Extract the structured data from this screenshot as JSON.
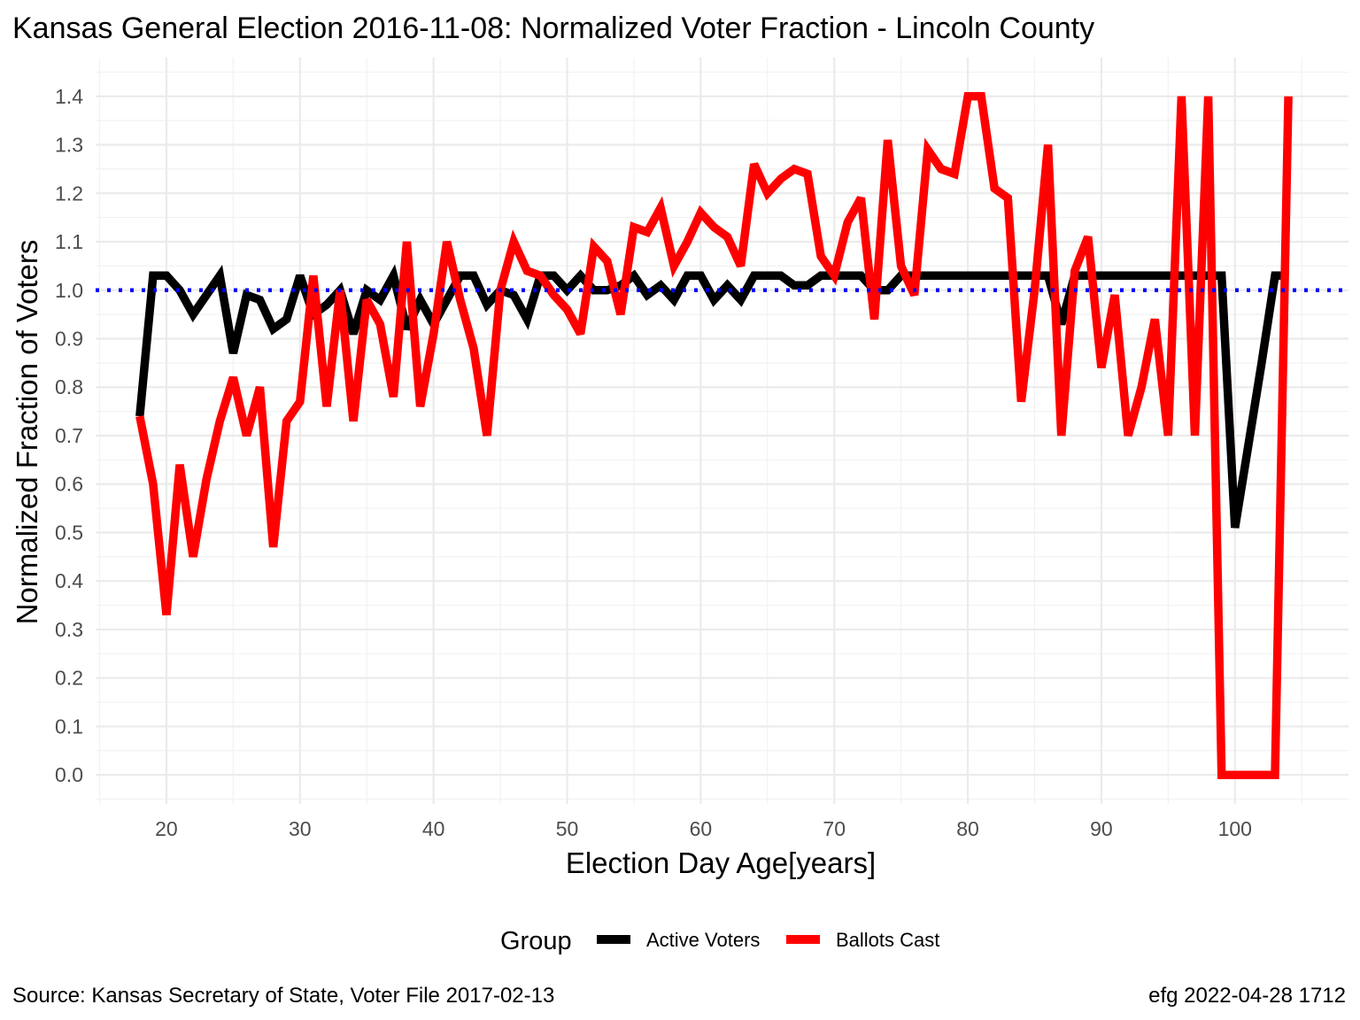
{
  "chart_data": {
    "type": "line",
    "title": "Kansas General Election 2016-11-08:  Normalized Voter Fraction - Lincoln County",
    "xlabel": "Election Day Age[years]",
    "ylabel": "Normalized Fraction of Voters",
    "xlim": [
      14.7,
      108.5
    ],
    "ylim": [
      -0.06,
      1.48
    ],
    "x_ticks": [
      20,
      30,
      40,
      50,
      60,
      70,
      80,
      90,
      100
    ],
    "y_ticks": [
      0.0,
      0.1,
      0.2,
      0.3,
      0.4,
      0.5,
      0.6,
      0.7,
      0.8,
      0.9,
      1.0,
      1.1,
      1.2,
      1.3,
      1.4
    ],
    "y_tick_labels": [
      "0.0",
      "0.1",
      "0.2",
      "0.3",
      "0.4",
      "0.5",
      "0.6",
      "0.7",
      "0.8",
      "0.9",
      "1.0",
      "1.1",
      "1.2",
      "1.3",
      "1.4"
    ],
    "grid": true,
    "reference_line": {
      "y": 1.0,
      "color": "#0000ff",
      "style": "dotted"
    },
    "legend": {
      "title": "Group",
      "position": "bottom"
    },
    "series": [
      {
        "name": "Active Voters",
        "color": "#000000",
        "x": [
          18,
          19,
          20,
          21,
          22,
          23,
          24,
          25,
          26,
          27,
          28,
          29,
          30,
          31,
          32,
          33,
          34,
          35,
          36,
          37,
          38,
          39,
          40,
          41,
          42,
          43,
          44,
          45,
          46,
          47,
          48,
          49,
          50,
          51,
          52,
          53,
          54,
          55,
          56,
          57,
          58,
          59,
          60,
          61,
          62,
          63,
          64,
          65,
          66,
          67,
          68,
          69,
          70,
          71,
          72,
          73,
          74,
          75,
          76,
          77,
          78,
          79,
          80,
          81,
          82,
          83,
          84,
          85,
          86,
          87,
          88,
          89,
          90,
          91,
          92,
          93,
          94,
          95,
          96,
          97,
          98,
          99,
          100,
          101,
          102,
          103,
          104
        ],
        "values": [
          0.74,
          1.03,
          1.03,
          1.0,
          0.95,
          0.99,
          1.03,
          0.87,
          0.99,
          0.98,
          0.92,
          0.94,
          1.03,
          0.95,
          0.97,
          1.0,
          0.91,
          1.0,
          0.98,
          1.03,
          0.92,
          0.98,
          0.93,
          0.98,
          1.03,
          1.03,
          0.97,
          1.0,
          0.99,
          0.94,
          1.03,
          1.03,
          1.0,
          1.03,
          1.0,
          1.0,
          1.01,
          1.03,
          0.99,
          1.01,
          0.98,
          1.03,
          1.03,
          0.98,
          1.01,
          0.98,
          1.03,
          1.03,
          1.03,
          1.01,
          1.01,
          1.03,
          1.03,
          1.03,
          1.03,
          1.0,
          1.0,
          1.03,
          1.03,
          1.03,
          1.03,
          1.03,
          1.03,
          1.03,
          1.03,
          1.03,
          1.03,
          1.03,
          1.03,
          0.93,
          1.03,
          1.03,
          1.03,
          1.03,
          1.03,
          1.03,
          1.03,
          1.03,
          1.03,
          1.03,
          1.03,
          1.03,
          0.51,
          0.68,
          0.85,
          1.03,
          1.03
        ]
      },
      {
        "name": "Ballots Cast",
        "color": "#ff0000",
        "x": [
          18,
          19,
          20,
          21,
          22,
          23,
          24,
          25,
          26,
          27,
          28,
          29,
          30,
          31,
          32,
          33,
          34,
          35,
          36,
          37,
          38,
          39,
          40,
          41,
          42,
          43,
          44,
          45,
          46,
          47,
          48,
          49,
          50,
          51,
          52,
          53,
          54,
          55,
          56,
          57,
          58,
          59,
          60,
          61,
          62,
          63,
          64,
          65,
          66,
          67,
          68,
          69,
          70,
          71,
          72,
          73,
          74,
          75,
          76,
          77,
          78,
          79,
          80,
          81,
          82,
          83,
          84,
          85,
          86,
          87,
          88,
          89,
          90,
          91,
          92,
          93,
          94,
          95,
          96,
          97,
          98,
          99,
          100,
          101,
          102,
          103,
          104
        ],
        "values": [
          0.74,
          0.6,
          0.33,
          0.64,
          0.45,
          0.61,
          0.73,
          0.82,
          0.7,
          0.8,
          0.47,
          0.73,
          0.77,
          1.03,
          0.76,
          1.0,
          0.73,
          0.98,
          0.93,
          0.78,
          1.1,
          0.76,
          0.91,
          1.1,
          0.98,
          0.88,
          0.7,
          1.0,
          1.1,
          1.04,
          1.03,
          0.99,
          0.96,
          0.91,
          1.09,
          1.06,
          0.95,
          1.13,
          1.12,
          1.17,
          1.05,
          1.1,
          1.16,
          1.13,
          1.11,
          1.05,
          1.26,
          1.2,
          1.23,
          1.25,
          1.24,
          1.07,
          1.03,
          1.14,
          1.19,
          0.94,
          1.31,
          1.05,
          0.99,
          1.29,
          1.25,
          1.24,
          1.4,
          1.4,
          1.21,
          1.19,
          0.77,
          1.0,
          1.3,
          0.7,
          1.04,
          1.11,
          0.84,
          0.99,
          0.7,
          0.8,
          0.94,
          0.7,
          1.4,
          0.7,
          1.4,
          0.0,
          0.0,
          0.0,
          0.0,
          0.0,
          1.4
        ]
      }
    ]
  },
  "caption_left": "Source:  Kansas Secretary of State, Voter File  2017-02-13",
  "caption_right": "efg 2022-04-28 1712"
}
